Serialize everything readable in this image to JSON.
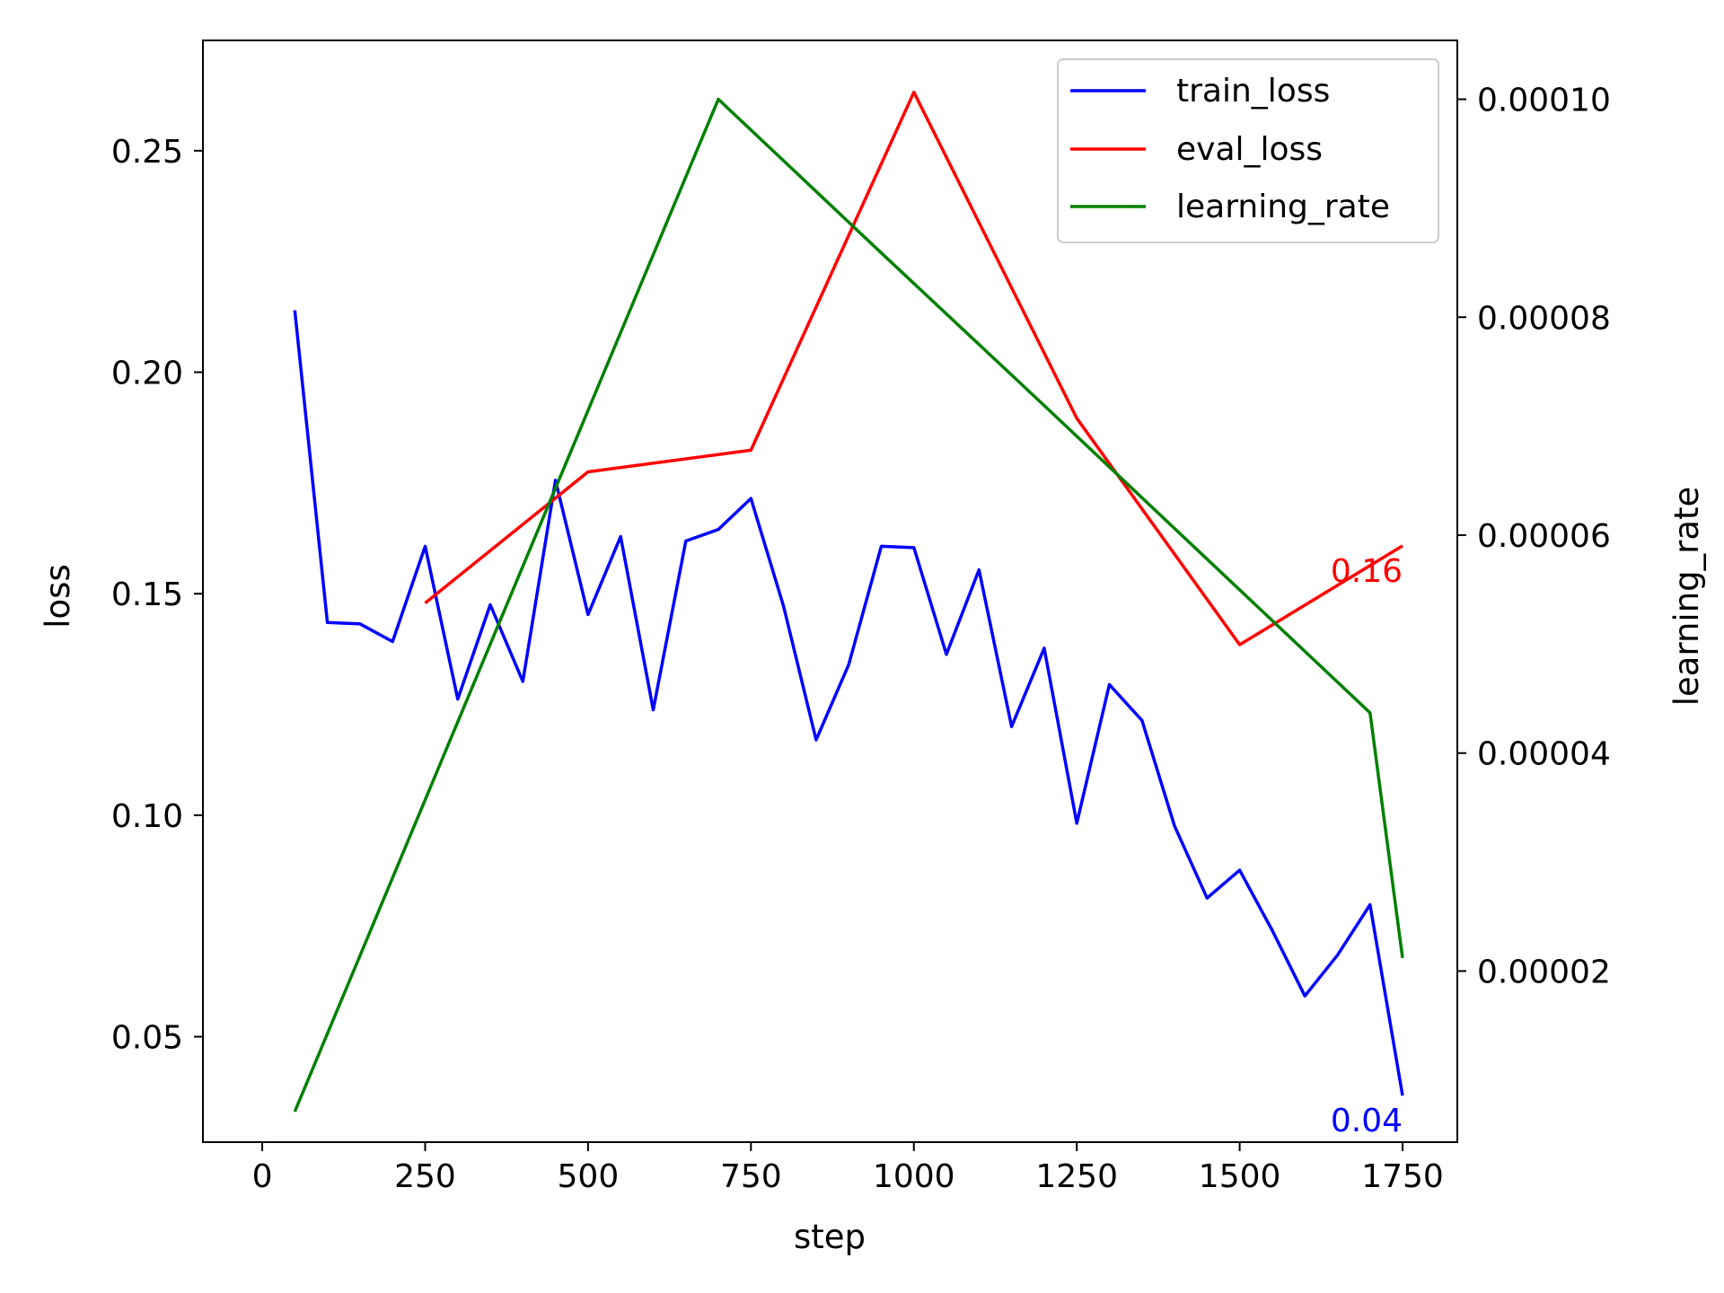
{
  "chart_data": {
    "type": "line",
    "xlabel": "step",
    "ylabel_left": "loss",
    "ylabel_right": "learning_rate",
    "xlim": [
      -91,
      1834
    ],
    "ylim_left": [
      0.0262,
      0.2749
    ],
    "ylim_right": [
      4.3e-06,
      0.0001054
    ],
    "x_ticks": [
      0,
      250,
      500,
      750,
      1000,
      1250,
      1500,
      1750
    ],
    "x_tick_labels": [
      "0",
      "250",
      "500",
      "750",
      "1000",
      "1250",
      "1500",
      "1750"
    ],
    "y_left_ticks": [
      0.05,
      0.1,
      0.15,
      0.2,
      0.25
    ],
    "y_left_tick_labels": [
      "0.05",
      "0.10",
      "0.15",
      "0.20",
      "0.25"
    ],
    "y_right_ticks": [
      2e-05,
      4e-05,
      6e-05,
      8e-05,
      0.0001
    ],
    "y_right_tick_labels": [
      "0.00002",
      "0.00004",
      "0.00006",
      "0.00008",
      "0.00010"
    ],
    "grid": false,
    "legend_position": "top-right",
    "series": [
      {
        "name": "train_loss",
        "axis": "left",
        "color": "#0000ff",
        "x": [
          50,
          100,
          150,
          200,
          250,
          300,
          350,
          400,
          450,
          500,
          550,
          600,
          650,
          700,
          750,
          800,
          850,
          900,
          950,
          1000,
          1050,
          1100,
          1150,
          1200,
          1250,
          1300,
          1350,
          1400,
          1450,
          1500,
          1550,
          1600,
          1650,
          1700,
          1750
        ],
        "y": [
          0.214,
          0.1435,
          0.1432,
          0.1392,
          0.1607,
          0.1262,
          0.1475,
          0.1302,
          0.1756,
          0.1453,
          0.1629,
          0.1238,
          0.1619,
          0.1645,
          0.1715,
          0.1472,
          0.117,
          0.134,
          0.1607,
          0.1604,
          0.1363,
          0.1554,
          0.12,
          0.1377,
          0.0982,
          0.1295,
          0.1214,
          0.0976,
          0.0813,
          0.0876,
          0.074,
          0.0592,
          0.0684,
          0.0798,
          0.0367
        ]
      },
      {
        "name": "eval_loss",
        "axis": "left",
        "color": "#ff0000",
        "x": [
          250,
          500,
          750,
          1000,
          1250,
          1500,
          1750
        ],
        "y": [
          0.1479,
          0.1775,
          0.1824,
          0.2632,
          0.1896,
          0.1385,
          0.1608
        ]
      },
      {
        "name": "learning_rate",
        "axis": "right",
        "color": "#008000",
        "x": [
          50,
          450,
          700,
          950,
          1200,
          1450,
          1700,
          1750
        ],
        "y": [
          7.1e-06,
          6.43e-05,
          0.0001,
          8.59e-05,
          7.19e-05,
          5.78e-05,
          4.37e-05,
          2.12e-05
        ]
      }
    ],
    "annotations": [
      {
        "text": "0.16",
        "color": "#ff0000",
        "series": "eval_loss",
        "x": 1750,
        "y": 0.1608
      },
      {
        "text": "0.04",
        "color": "#0000ff",
        "series": "train_loss",
        "x": 1750,
        "y": 0.0367
      }
    ]
  }
}
